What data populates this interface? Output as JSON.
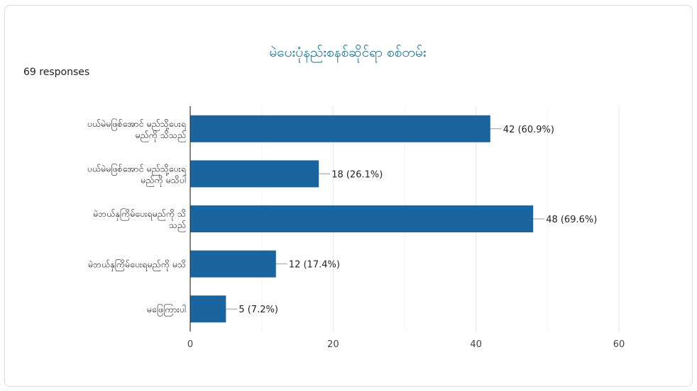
{
  "chart_data": {
    "type": "bar",
    "orientation": "horizontal",
    "title": "မဲပေးပုံနည်းစနစ်ဆိုင်ရာ စစ်တမ်း",
    "subtitle": "69 responses",
    "categories": [
      [
        "ပယ်မဲမဖြစ်အောင် မည်သို့ပေးရ",
        "မည်ကို သိသည်"
      ],
      [
        "ပယ်မဲမဖြစ်အောင် မည်သို့ပေးရ",
        "မည်ကို မသိပါ"
      ],
      [
        "မဲဘယ်နှကြိမ်ပေးရမည်ကို သိ",
        "သည်"
      ],
      [
        "မဲဘယ်နှကြိမ်ပေးရမည်ကို မသိ"
      ],
      [
        "မဖြေကြားပါ"
      ]
    ],
    "values": [
      42,
      18,
      48,
      12,
      5
    ],
    "data_labels": [
      "42 (60.9%)",
      "18 (26.1%)",
      "48 (69.6%)",
      "12 (17.4%)",
      "5 (7.2%)"
    ],
    "xlim": [
      0,
      60
    ],
    "xticks": [
      0,
      20,
      40,
      60
    ],
    "grid": true,
    "bar_color": "#1a65a0",
    "title_color": "#1a6e8e"
  }
}
